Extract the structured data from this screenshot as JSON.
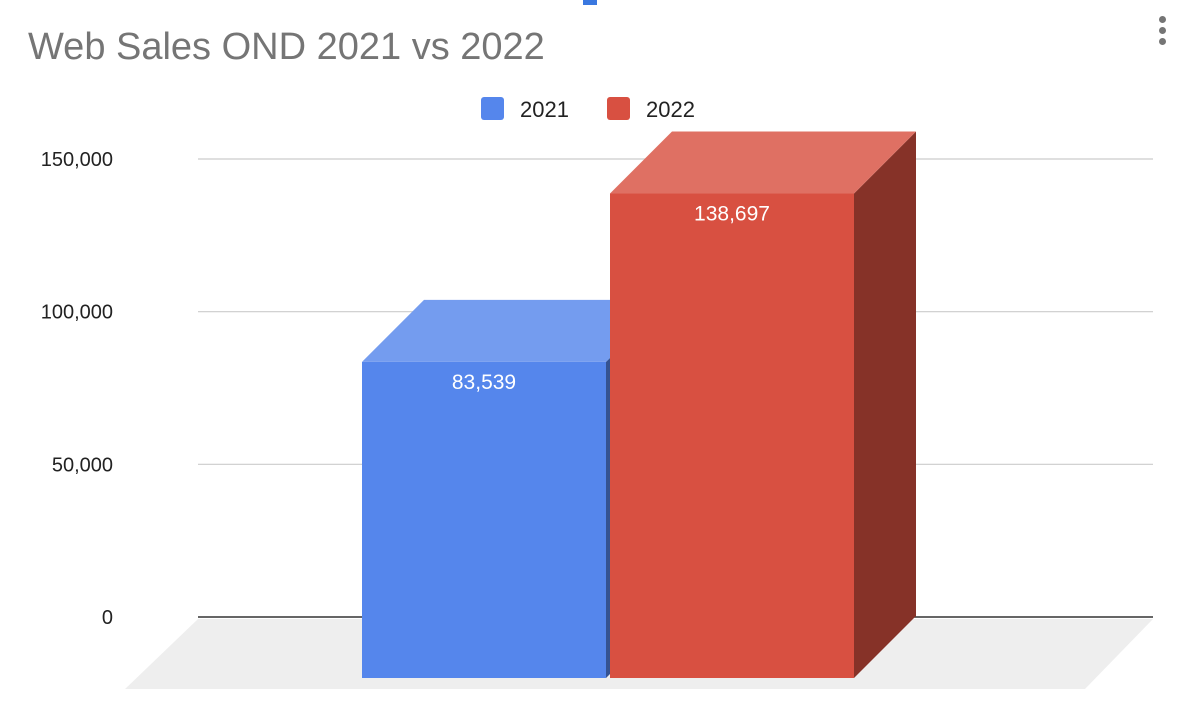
{
  "menu": {
    "icon": "more-vert-icon"
  },
  "chart_data": {
    "type": "bar",
    "title": "Web Sales OND 2021 vs 2022",
    "categories": [
      ""
    ],
    "series": [
      {
        "name": "2021",
        "values": [
          83539
        ],
        "labels": [
          "83,539"
        ],
        "color": "#5586ec"
      },
      {
        "name": "2022",
        "values": [
          138697
        ],
        "labels": [
          "138,697"
        ],
        "color": "#d85041"
      }
    ],
    "ylim": [
      0,
      150000
    ],
    "yticks": [
      0,
      50000,
      100000,
      150000
    ],
    "ytick_labels": [
      "0",
      "50,000",
      "100,000",
      "150,000"
    ],
    "grid": true,
    "legend": "top-center",
    "style": "3d"
  }
}
